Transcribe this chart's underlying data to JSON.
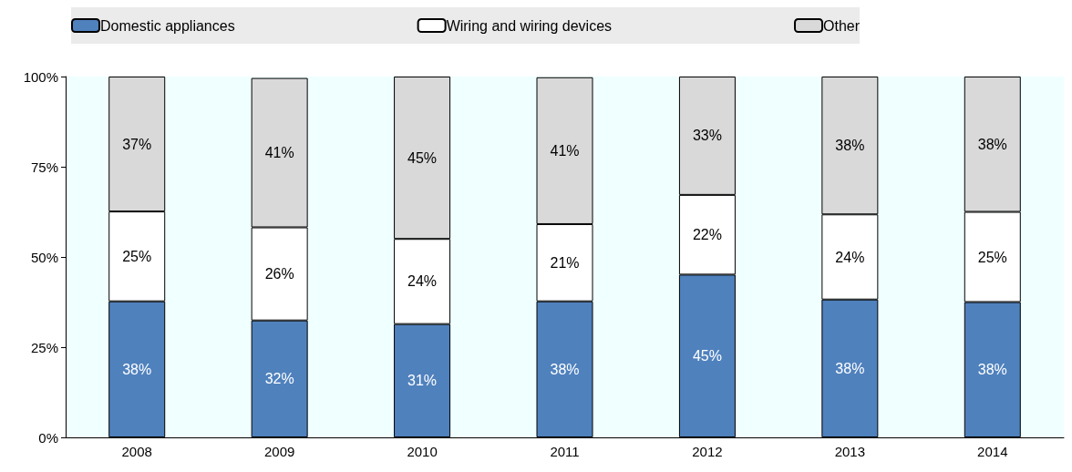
{
  "chart_data": {
    "type": "bar",
    "stacked": true,
    "categories": [
      "2008",
      "2009",
      "2010",
      "2011",
      "2012",
      "2013",
      "2014"
    ],
    "series": [
      {
        "name": "Domestic appliances",
        "color": "#4f81bd",
        "values": [
          37.7,
          32.4,
          31.4,
          37.7,
          45.1,
          38.2,
          37.5
        ],
        "value_labels": [
          "38%",
          "32%",
          "31%",
          "38%",
          "45%",
          "38%",
          "38%"
        ]
      },
      {
        "name": "Wiring and wiring devices",
        "color": "#ffffff",
        "values": [
          24.9,
          25.8,
          23.6,
          21.4,
          22.1,
          23.6,
          25.0
        ],
        "value_labels": [
          "25%",
          "26%",
          "24%",
          "21%",
          "22%",
          "24%",
          "25%"
        ]
      },
      {
        "name": "Other",
        "color": "#d9d9d9",
        "values": [
          37.4,
          41.4,
          45.0,
          40.7,
          32.8,
          38.2,
          37.5
        ],
        "value_labels": [
          "37%",
          "41%",
          "45%",
          "41%",
          "33%",
          "38%",
          "38%"
        ]
      }
    ],
    "ylim": [
      0,
      100
    ],
    "yticks": [
      {
        "value": 0,
        "label": "0%"
      },
      {
        "value": 25,
        "label": "25%"
      },
      {
        "value": 50,
        "label": "50%"
      },
      {
        "value": 75,
        "label": "75%"
      },
      {
        "value": 100,
        "label": "100%"
      }
    ],
    "grid": false,
    "legend": "top"
  }
}
